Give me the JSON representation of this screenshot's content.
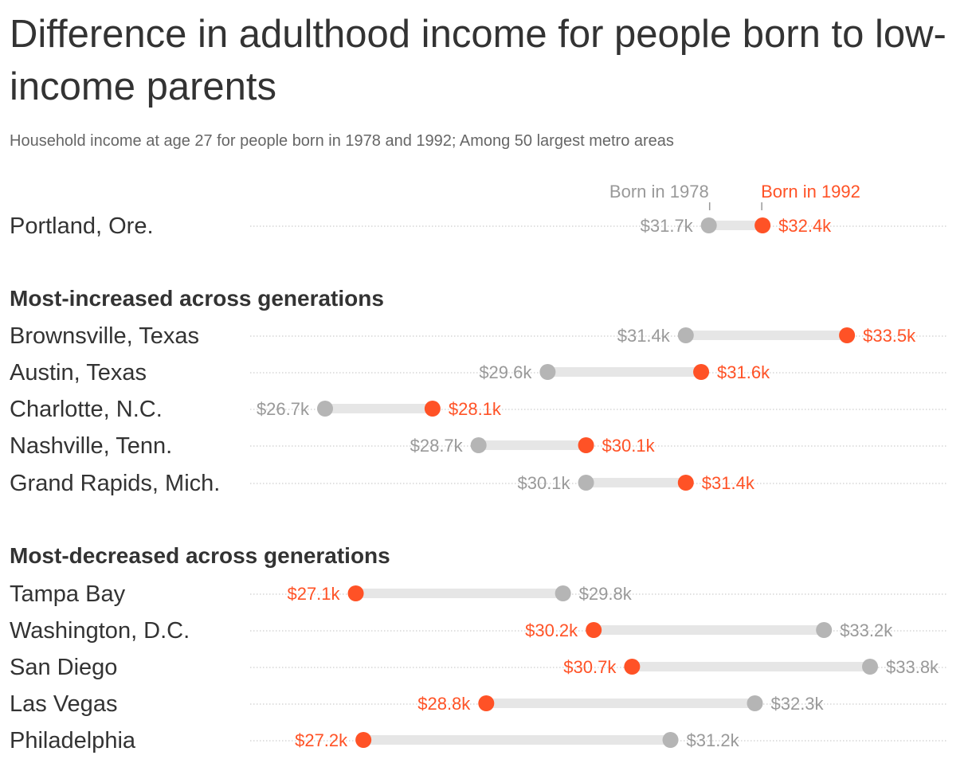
{
  "title": "Difference in adulthood income for people born to low-income parents",
  "subtitle": "Household income at age 27 for people born in 1978 and 1992; Among 50 largest metro areas",
  "colors": {
    "born_1978": "#b5b5b5",
    "born_1992": "#ff5226",
    "label_1978": "#999999",
    "connector": "#e6e6e6",
    "dots": "#d6d6d6",
    "text": "#333333"
  },
  "chart_data": {
    "type": "dumbbell",
    "title": "Difference in adulthood income for people born to low-income parents",
    "subtitle": "Household income at age 27 for people born in 1978 and 1992; Among 50 largest metro areas",
    "unit": "thousands of dollars",
    "legend": [
      {
        "name": "Born in 1978"
      },
      {
        "name": "Born in 1992"
      }
    ],
    "xlim": [
      25.6,
      33.8
    ],
    "groups": [
      {
        "heading": "",
        "rows": [
          {
            "metro": "Portland, Ore.",
            "born_1978": 31.7,
            "born_1992": 32.4,
            "label_1978": "$31.7k",
            "label_1992": "$32.4k"
          }
        ]
      },
      {
        "heading": "Most-increased across generations",
        "rows": [
          {
            "metro": "Brownsville, Texas",
            "born_1978": 31.4,
            "born_1992": 33.5,
            "label_1978": "$31.4k",
            "label_1992": "$33.5k"
          },
          {
            "metro": "Austin, Texas",
            "born_1978": 29.6,
            "born_1992": 31.6,
            "label_1978": "$29.6k",
            "label_1992": "$31.6k"
          },
          {
            "metro": "Charlotte, N.C.",
            "born_1978": 26.7,
            "born_1992": 28.1,
            "label_1978": "$26.7k",
            "label_1992": "$28.1k"
          },
          {
            "metro": "Nashville, Tenn.",
            "born_1978": 28.7,
            "born_1992": 30.1,
            "label_1978": "$28.7k",
            "label_1992": "$30.1k"
          },
          {
            "metro": "Grand Rapids, Mich.",
            "born_1978": 30.1,
            "born_1992": 31.4,
            "label_1978": "$30.1k",
            "label_1992": "$31.4k"
          }
        ]
      },
      {
        "heading": "Most-decreased across generations",
        "rows": [
          {
            "metro": "Tampa Bay",
            "born_1978": 29.8,
            "born_1992": 27.1,
            "label_1978": "$29.8k",
            "label_1992": "$27.1k"
          },
          {
            "metro": "Washington, D.C.",
            "born_1978": 33.2,
            "born_1992": 30.2,
            "label_1978": "$33.2k",
            "label_1992": "$30.2k"
          },
          {
            "metro": "San Diego",
            "born_1978": 33.8,
            "born_1992": 30.7,
            "label_1978": "$33.8k",
            "label_1992": "$30.7k"
          },
          {
            "metro": "Las Vegas",
            "born_1978": 32.3,
            "born_1992": 28.8,
            "label_1978": "$32.3k",
            "label_1992": "$28.8k"
          },
          {
            "metro": "Philadelphia",
            "born_1978": 31.2,
            "born_1992": 27.2,
            "label_1978": "$31.2k",
            "label_1992": "$27.2k"
          }
        ]
      }
    ]
  }
}
